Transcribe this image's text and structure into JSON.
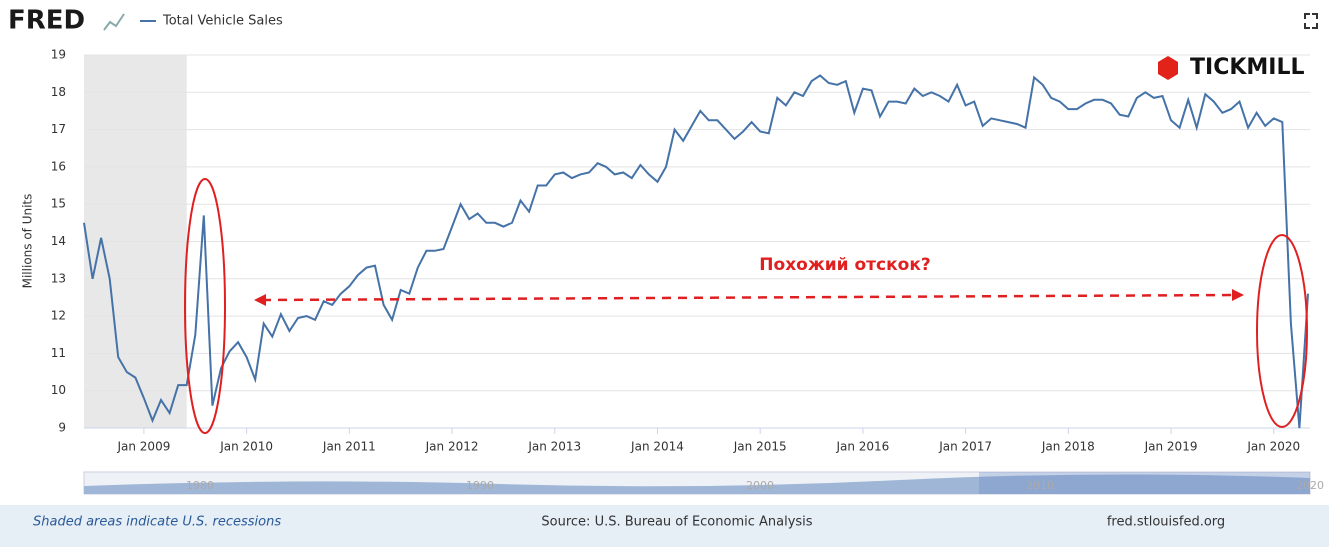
{
  "brand": "FRED",
  "logo": "TICKMILL",
  "chart_data": {
    "type": "line",
    "ylabel": "Millions of Units",
    "annotation": "Похожий отскок?",
    "x": [
      "2008-06",
      "2008-07",
      "2008-08",
      "2008-09",
      "2008-10",
      "2008-11",
      "2008-12",
      "2009-01",
      "2009-02",
      "2009-03",
      "2009-04",
      "2009-05",
      "2009-06",
      "2009-07",
      "2009-08",
      "2009-09",
      "2009-10",
      "2009-11",
      "2009-12",
      "2010-01",
      "2010-02",
      "2010-03",
      "2010-04",
      "2010-05",
      "2010-06",
      "2010-07",
      "2010-08",
      "2010-09",
      "2010-10",
      "2010-11",
      "2010-12",
      "2011-01",
      "2011-02",
      "2011-03",
      "2011-04",
      "2011-05",
      "2011-06",
      "2011-07",
      "2011-08",
      "2011-09",
      "2011-10",
      "2011-11",
      "2011-12",
      "2012-01",
      "2012-02",
      "2012-03",
      "2012-04",
      "2012-05",
      "2012-06",
      "2012-07",
      "2012-08",
      "2012-09",
      "2012-10",
      "2012-11",
      "2012-12",
      "2013-01",
      "2013-02",
      "2013-03",
      "2013-04",
      "2013-05",
      "2013-06",
      "2013-07",
      "2013-08",
      "2013-09",
      "2013-10",
      "2013-11",
      "2013-12",
      "2014-01",
      "2014-02",
      "2014-03",
      "2014-04",
      "2014-05",
      "2014-06",
      "2014-07",
      "2014-08",
      "2014-09",
      "2014-10",
      "2014-11",
      "2014-12",
      "2015-01",
      "2015-02",
      "2015-03",
      "2015-04",
      "2015-05",
      "2015-06",
      "2015-07",
      "2015-08",
      "2015-09",
      "2015-10",
      "2015-11",
      "2015-12",
      "2016-01",
      "2016-02",
      "2016-03",
      "2016-04",
      "2016-05",
      "2016-06",
      "2016-07",
      "2016-08",
      "2016-09",
      "2016-10",
      "2016-11",
      "2016-12",
      "2017-01",
      "2017-02",
      "2017-03",
      "2017-04",
      "2017-05",
      "2017-06",
      "2017-07",
      "2017-08",
      "2017-09",
      "2017-10",
      "2017-11",
      "2017-12",
      "2018-01",
      "2018-02",
      "2018-03",
      "2018-04",
      "2018-05",
      "2018-06",
      "2018-07",
      "2018-08",
      "2018-09",
      "2018-10",
      "2018-11",
      "2018-12",
      "2019-01",
      "2019-02",
      "2019-03",
      "2019-04",
      "2019-05",
      "2019-06",
      "2019-07",
      "2019-08",
      "2019-09",
      "2019-10",
      "2019-11",
      "2019-12",
      "2020-01",
      "2020-02",
      "2020-03",
      "2020-04",
      "2020-05"
    ],
    "series": [
      {
        "name": "Total Vehicle Sales",
        "color": "#4572a7",
        "values": [
          14.5,
          13.0,
          14.1,
          13.0,
          10.9,
          10.5,
          10.35,
          9.8,
          9.2,
          9.75,
          9.4,
          10.15,
          10.15,
          11.5,
          14.7,
          9.6,
          10.6,
          11.05,
          11.3,
          10.9,
          10.3,
          11.8,
          11.45,
          12.05,
          11.6,
          11.95,
          12.0,
          11.9,
          12.4,
          12.3,
          12.6,
          12.8,
          13.1,
          13.3,
          13.35,
          12.3,
          11.9,
          12.7,
          12.6,
          13.3,
          13.75,
          13.75,
          13.8,
          14.4,
          15.0,
          14.6,
          14.75,
          14.5,
          14.5,
          14.4,
          14.5,
          15.1,
          14.8,
          15.5,
          15.5,
          15.8,
          15.85,
          15.7,
          15.8,
          15.85,
          16.1,
          16.0,
          15.8,
          15.85,
          15.7,
          16.05,
          15.8,
          15.6,
          16.0,
          17.0,
          16.7,
          17.1,
          17.5,
          17.25,
          17.25,
          17.0,
          16.75,
          16.95,
          17.2,
          16.95,
          16.9,
          17.85,
          17.65,
          18.0,
          17.9,
          18.3,
          18.45,
          18.25,
          18.2,
          18.3,
          17.45,
          18.1,
          18.05,
          17.35,
          17.75,
          17.75,
          17.7,
          18.1,
          17.9,
          18.0,
          17.9,
          17.75,
          18.2,
          17.65,
          17.75,
          17.1,
          17.3,
          17.25,
          17.2,
          17.15,
          17.05,
          18.4,
          18.2,
          17.85,
          17.75,
          17.55,
          17.55,
          17.7,
          17.8,
          17.8,
          17.7,
          17.4,
          17.35,
          17.85,
          18.0,
          17.85,
          17.9,
          17.25,
          17.05,
          17.8,
          17.05,
          17.95,
          17.75,
          17.45,
          17.55,
          17.75,
          17.05,
          17.45,
          17.1,
          17.3,
          17.2,
          11.8,
          9.0,
          12.6
        ]
      }
    ],
    "xlim": [
      "2008-06",
      "2020-05"
    ],
    "xticks": [
      {
        "value": "2009-01",
        "label": "Jan 2009"
      },
      {
        "value": "2010-01",
        "label": "Jan 2010"
      },
      {
        "value": "2011-01",
        "label": "Jan 2011"
      },
      {
        "value": "2012-01",
        "label": "Jan 2012"
      },
      {
        "value": "2013-01",
        "label": "Jan 2013"
      },
      {
        "value": "2014-01",
        "label": "Jan 2014"
      },
      {
        "value": "2015-01",
        "label": "Jan 2015"
      },
      {
        "value": "2016-01",
        "label": "Jan 2016"
      },
      {
        "value": "2017-01",
        "label": "Jan 2017"
      },
      {
        "value": "2018-01",
        "label": "Jan 2018"
      },
      {
        "value": "2019-01",
        "label": "Jan 2019"
      },
      {
        "value": "2020-01",
        "label": "Jan 2020"
      }
    ],
    "ylim": [
      9,
      19
    ],
    "yticks": [
      9,
      10,
      11,
      12,
      13,
      14,
      15,
      16,
      17,
      18,
      19
    ],
    "grid": true,
    "recessions": [
      {
        "start": "2008-06",
        "end": "2009-06"
      }
    ],
    "navigator_labels": [
      "1980",
      "1990",
      "2000",
      "2010",
      "2020"
    ]
  },
  "footer": {
    "note": "Shaded areas indicate U.S. recessions",
    "source": "Source: U.S. Bureau of Economic Analysis",
    "site": "fred.stlouisfed.org"
  }
}
